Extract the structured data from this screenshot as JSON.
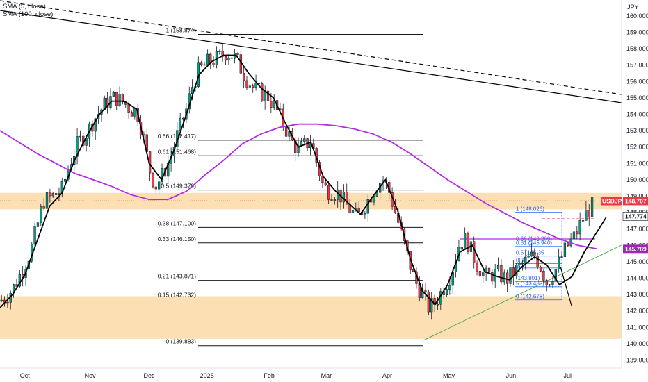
{
  "legend": {
    "sma_short": "SMA (5, close)",
    "sma_long": "SMA (100, close)"
  },
  "currency_label": "JPY",
  "chart_data": {
    "type": "candlestick",
    "symbol": "USDJPY",
    "ylim": [
      138.6,
      160.8
    ],
    "y_ticks": [
      "160.000",
      "159.000",
      "158.000",
      "157.000",
      "156.000",
      "155.000",
      "154.000",
      "153.000",
      "152.000",
      "151.000",
      "150.000",
      "149.000",
      "148.000",
      "147.000",
      "146.000",
      "145.000",
      "144.000",
      "143.000",
      "142.000",
      "141.000",
      "140.000",
      "139.000"
    ],
    "x_ticks": [
      {
        "label": "Oct",
        "t": 0.04
      },
      {
        "label": "Nov",
        "t": 0.145
      },
      {
        "label": "Dec",
        "t": 0.24
      },
      {
        "label": "2025",
        "t": 0.333
      },
      {
        "label": "Feb",
        "t": 0.433
      },
      {
        "label": "Mar",
        "t": 0.525
      },
      {
        "label": "Apr",
        "t": 0.623
      },
      {
        "label": "May",
        "t": 0.722
      },
      {
        "label": "Jun",
        "t": 0.822
      },
      {
        "label": "Jul",
        "t": 0.913
      }
    ],
    "close_path": [
      [
        0.0,
        142.6
      ],
      [
        0.01,
        142.9
      ],
      [
        0.02,
        143.3
      ],
      [
        0.035,
        144.4
      ],
      [
        0.05,
        145.7
      ],
      [
        0.06,
        147.2
      ],
      [
        0.07,
        148.7
      ],
      [
        0.085,
        149.0
      ],
      [
        0.1,
        149.4
      ],
      [
        0.112,
        151.0
      ],
      [
        0.125,
        152.2
      ],
      [
        0.14,
        152.9
      ],
      [
        0.15,
        153.6
      ],
      [
        0.163,
        154.3
      ],
      [
        0.175,
        154.9
      ],
      [
        0.187,
        155.0
      ],
      [
        0.2,
        154.7
      ],
      [
        0.21,
        154.3
      ],
      [
        0.22,
        154.2
      ],
      [
        0.23,
        152.8
      ],
      [
        0.24,
        150.7
      ],
      [
        0.25,
        149.6
      ],
      [
        0.26,
        150.2
      ],
      [
        0.273,
        151.2
      ],
      [
        0.285,
        152.7
      ],
      [
        0.3,
        154.3
      ],
      [
        0.31,
        155.8
      ],
      [
        0.32,
        156.7
      ],
      [
        0.335,
        157.2
      ],
      [
        0.35,
        157.4
      ],
      [
        0.365,
        157.8
      ],
      [
        0.38,
        157.4
      ],
      [
        0.39,
        156.6
      ],
      [
        0.4,
        156.0
      ],
      [
        0.41,
        155.5
      ],
      [
        0.43,
        155.1
      ],
      [
        0.44,
        154.6
      ],
      [
        0.455,
        153.5
      ],
      [
        0.47,
        152.3
      ],
      [
        0.48,
        151.8
      ],
      [
        0.49,
        152.1
      ],
      [
        0.5,
        152.4
      ],
      [
        0.51,
        151.0
      ],
      [
        0.52,
        149.6
      ],
      [
        0.53,
        149.3
      ],
      [
        0.545,
        149.2
      ],
      [
        0.56,
        148.3
      ],
      [
        0.575,
        147.7
      ],
      [
        0.585,
        148.3
      ],
      [
        0.6,
        149.3
      ],
      [
        0.615,
        150.1
      ],
      [
        0.625,
        149.4
      ],
      [
        0.64,
        147.5
      ],
      [
        0.655,
        145.4
      ],
      [
        0.668,
        143.8
      ],
      [
        0.68,
        143.0
      ],
      [
        0.69,
        142.2
      ],
      [
        0.7,
        142.5
      ],
      [
        0.712,
        143.3
      ],
      [
        0.725,
        144.2
      ],
      [
        0.738,
        146.0
      ],
      [
        0.75,
        146.4
      ],
      [
        0.765,
        145.0
      ],
      [
        0.78,
        144.1
      ],
      [
        0.8,
        144.3
      ],
      [
        0.815,
        143.9
      ],
      [
        0.83,
        144.5
      ],
      [
        0.845,
        145.0
      ],
      [
        0.86,
        145.4
      ],
      [
        0.87,
        144.7
      ],
      [
        0.88,
        143.7
      ],
      [
        0.895,
        144.6
      ],
      [
        0.91,
        145.8
      ],
      [
        0.925,
        146.6
      ],
      [
        0.94,
        147.8
      ],
      [
        0.955,
        148.5
      ]
    ],
    "sma_short_path": [
      [
        0.0,
        142.2
      ],
      [
        0.02,
        143.0
      ],
      [
        0.04,
        144.2
      ],
      [
        0.06,
        146.3
      ],
      [
        0.08,
        148.4
      ],
      [
        0.1,
        149.2
      ],
      [
        0.12,
        151.2
      ],
      [
        0.14,
        152.7
      ],
      [
        0.16,
        154.0
      ],
      [
        0.18,
        154.8
      ],
      [
        0.2,
        154.8
      ],
      [
        0.22,
        154.3
      ],
      [
        0.24,
        151.0
      ],
      [
        0.26,
        150.0
      ],
      [
        0.28,
        151.8
      ],
      [
        0.3,
        154.0
      ],
      [
        0.32,
        156.4
      ],
      [
        0.34,
        157.2
      ],
      [
        0.36,
        157.6
      ],
      [
        0.38,
        157.6
      ],
      [
        0.4,
        156.5
      ],
      [
        0.42,
        155.6
      ],
      [
        0.44,
        155.0
      ],
      [
        0.46,
        153.4
      ],
      [
        0.48,
        152.0
      ],
      [
        0.5,
        152.3
      ],
      [
        0.52,
        150.2
      ],
      [
        0.54,
        149.3
      ],
      [
        0.56,
        148.6
      ],
      [
        0.58,
        147.9
      ],
      [
        0.6,
        149.0
      ],
      [
        0.62,
        150.0
      ],
      [
        0.64,
        148.1
      ],
      [
        0.66,
        145.2
      ],
      [
        0.68,
        143.2
      ],
      [
        0.7,
        142.4
      ],
      [
        0.72,
        143.6
      ],
      [
        0.74,
        145.6
      ],
      [
        0.76,
        146.0
      ],
      [
        0.78,
        144.4
      ],
      [
        0.8,
        144.1
      ],
      [
        0.82,
        143.9
      ],
      [
        0.84,
        144.7
      ],
      [
        0.86,
        145.3
      ],
      [
        0.88,
        144.8
      ],
      [
        0.9,
        143.6
      ],
      [
        0.92,
        144.1
      ],
      [
        0.94,
        145.6
      ],
      [
        0.96,
        146.8
      ],
      [
        0.975,
        147.7
      ]
    ],
    "sma_long_path": [
      [
        0.0,
        153.0
      ],
      [
        0.03,
        152.3
      ],
      [
        0.06,
        151.6
      ],
      [
        0.09,
        151.0
      ],
      [
        0.12,
        150.4
      ],
      [
        0.15,
        150.0
      ],
      [
        0.18,
        149.6
      ],
      [
        0.21,
        149.1
      ],
      [
        0.24,
        148.8
      ],
      [
        0.27,
        148.8
      ],
      [
        0.3,
        149.3
      ],
      [
        0.33,
        150.3
      ],
      [
        0.36,
        151.2
      ],
      [
        0.39,
        152.2
      ],
      [
        0.42,
        152.8
      ],
      [
        0.45,
        153.2
      ],
      [
        0.48,
        153.4
      ],
      [
        0.51,
        153.4
      ],
      [
        0.54,
        153.3
      ],
      [
        0.57,
        153.1
      ],
      [
        0.6,
        152.8
      ],
      [
        0.63,
        152.3
      ],
      [
        0.66,
        151.6
      ],
      [
        0.69,
        150.8
      ],
      [
        0.72,
        150.0
      ],
      [
        0.75,
        149.3
      ],
      [
        0.78,
        148.6
      ],
      [
        0.81,
        148.0
      ],
      [
        0.84,
        147.4
      ],
      [
        0.87,
        146.9
      ],
      [
        0.9,
        146.4
      ],
      [
        0.93,
        146.0
      ],
      [
        0.96,
        145.8
      ]
    ],
    "fib_levels": [
      {
        "ratio": "1",
        "value": "158.874",
        "label": "1 (158.874)"
      },
      {
        "ratio": "0.66",
        "value": "152.417",
        "label": "0.66 (152.417)"
      },
      {
        "ratio": "0.61",
        "value": "151.468",
        "label": "0.61 (151.468)"
      },
      {
        "ratio": "0.5",
        "value": "149.379",
        "label": "0.5 (149.379)"
      },
      {
        "ratio": "0.38",
        "value": "147.100",
        "label": "0.38 (147.100)"
      },
      {
        "ratio": "0.33",
        "value": "146.150",
        "label": "0.33 (146.150)"
      },
      {
        "ratio": "0.21",
        "value": "143.871",
        "label": "0.21 (143.871)"
      },
      {
        "ratio": "0.15",
        "value": "142.732",
        "label": "0.15 (142.732)"
      },
      {
        "ratio": "0",
        "value": "139.883",
        "label": "0 (139.883)"
      }
    ],
    "fib_small_levels": [
      {
        "value": 148.026,
        "label": "1 (148.026)"
      },
      {
        "value": 146.2,
        "label": "0.66 (146.209)"
      },
      {
        "value": 145.94,
        "label": "0.61 (145.940)"
      },
      {
        "value": 145.35,
        "label": "0.5 (145.35"
      },
      {
        "value": 144.9,
        "label": "0.3"
      },
      {
        "value": 144.62,
        "label": "0.3"
      },
      {
        "value": 143.801,
        "label": "(143.801)"
      },
      {
        "value": 143.48,
        "label": "5 (143.480)"
      },
      {
        "value": 142.678,
        "label": "0 (142.678)"
      }
    ],
    "zones": [
      {
        "from": 148.2,
        "to": 149.2
      },
      {
        "from": 140.3,
        "to": 142.9
      }
    ],
    "price_tags": [
      {
        "name": "USDJPY",
        "label": "USDJPY",
        "value": "148.707",
        "y": 148.707,
        "color": "#f23645"
      },
      {
        "name": "sma-short",
        "label": "",
        "value": "147.774",
        "y": 147.774,
        "color": "#ffffff"
      },
      {
        "name": "sma-long",
        "label": "",
        "value": "145.789",
        "y": 145.789,
        "color": "#9c27b0"
      }
    ]
  },
  "colors": {
    "up": "#089981",
    "down": "#f23645",
    "sma_short": "#000000",
    "sma_long": "#b42be5",
    "zone": "#fbd9a6",
    "trend": "#4caf50",
    "fib_blue": "#2962ff"
  }
}
